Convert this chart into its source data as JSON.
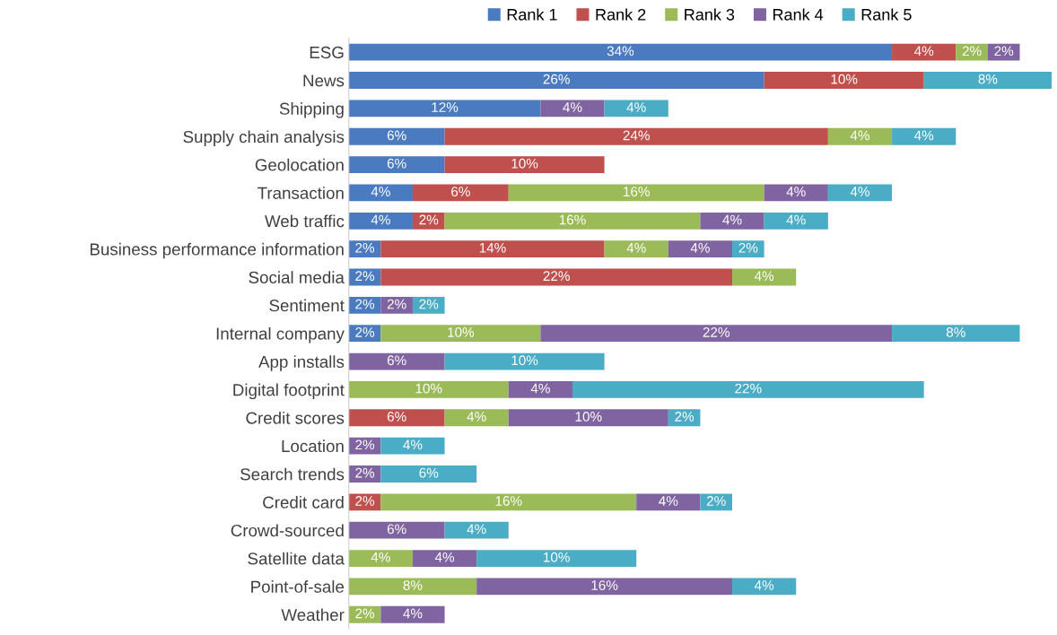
{
  "chart_data": {
    "type": "bar",
    "orientation": "horizontal",
    "stacked": true,
    "legend": "top",
    "grid": false,
    "tick_labels": "y",
    "categories": [
      "ESG",
      "News",
      "Shipping",
      "Supply chain analysis",
      "Geolocation",
      "Transaction",
      "Web traffic",
      "Business performance information",
      "Social media",
      "Sentiment",
      "Internal company",
      "App installs",
      "Digital footprint",
      "Credit scores",
      "Location",
      "Search trends",
      "Credit card",
      "Crowd-sourced",
      "Satellite data",
      "Point-of-sale",
      "Weather"
    ],
    "series": [
      {
        "name": "Rank 1",
        "color": "#4a7bc0",
        "values": [
          34,
          26,
          12,
          6,
          6,
          4,
          4,
          2,
          2,
          2,
          2,
          null,
          null,
          null,
          null,
          null,
          null,
          null,
          null,
          null,
          null
        ],
        "value_labels": [
          "34%",
          "26%",
          "12%",
          "6%",
          "6%",
          "4%",
          "4%",
          "2%",
          "2%",
          "2%",
          "2%",
          null,
          null,
          null,
          null,
          null,
          null,
          null,
          null,
          null,
          null
        ]
      },
      {
        "name": "Rank 2",
        "color": "#c0504d",
        "values": [
          4,
          10,
          null,
          24,
          10,
          6,
          2,
          14,
          22,
          null,
          null,
          null,
          null,
          6,
          null,
          null,
          2,
          null,
          null,
          null,
          null
        ],
        "value_labels": [
          "4%",
          "10%",
          null,
          "24%",
          "10%",
          "6%",
          "2%",
          "14%",
          "22%",
          null,
          null,
          null,
          null,
          "6%",
          null,
          null,
          "2%",
          null,
          null,
          null,
          null
        ]
      },
      {
        "name": "Rank 3",
        "color": "#9bbb59",
        "values": [
          2,
          null,
          null,
          4,
          null,
          16,
          16,
          4,
          4,
          null,
          10,
          null,
          10,
          4,
          null,
          null,
          16,
          null,
          4,
          8,
          2
        ],
        "value_labels": [
          "2%",
          null,
          null,
          "4%",
          null,
          "16%",
          "16%",
          "4%",
          "4%",
          null,
          "10%",
          null,
          "10%",
          "4%",
          null,
          null,
          "16%",
          null,
          "4%",
          "8%",
          "2%"
        ]
      },
      {
        "name": "Rank 4",
        "color": "#8064a2",
        "values": [
          2,
          null,
          4,
          null,
          null,
          4,
          4,
          4,
          null,
          2,
          22,
          6,
          4,
          10,
          2,
          2,
          4,
          6,
          4,
          16,
          4
        ],
        "value_labels": [
          "2%",
          null,
          "4%",
          null,
          null,
          "4%",
          "4%",
          "4%",
          null,
          "2%",
          "22%",
          "6%",
          "4%",
          "10%",
          "2%",
          "2%",
          "4%",
          "6%",
          "4%",
          "16%",
          "4%"
        ]
      },
      {
        "name": "Rank 5",
        "color": "#4bacc6",
        "values": [
          null,
          8,
          4,
          4,
          null,
          4,
          4,
          2,
          null,
          2,
          8,
          10,
          22,
          2,
          4,
          6,
          2,
          4,
          10,
          4,
          null
        ],
        "value_labels": [
          null,
          "8%",
          "4%",
          "4%",
          null,
          "4%",
          "4%",
          "2%",
          null,
          "2%",
          "8%",
          "10%",
          "22%",
          "2%",
          "4%",
          "6%",
          "2%",
          "4%",
          "10%",
          "4%",
          null
        ]
      }
    ]
  }
}
